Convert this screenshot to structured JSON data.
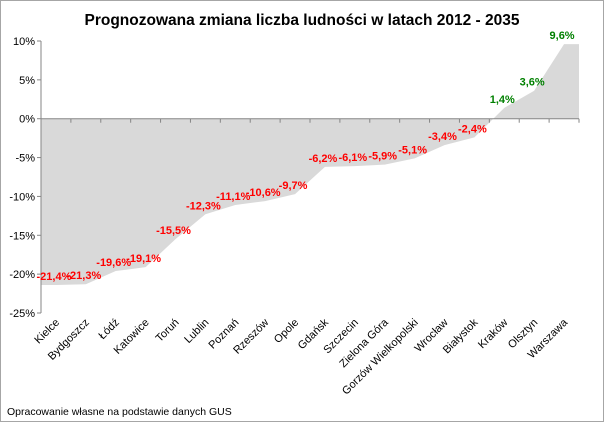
{
  "chart_data": {
    "type": "area",
    "title": "Prognozowana zmiana liczba ludności w latach 2012 - 2035",
    "footnote": "Opracowanie własne na podstawie danych GUS",
    "categories": [
      "Kielce",
      "Bydgoszcz",
      "Łódź",
      "Katowice",
      "Toruń",
      "Lublin",
      "Poznań",
      "Rzeszów",
      "Opole",
      "Gdańsk",
      "Szczecin",
      "Zielona Góra",
      "Gorzów Wielkopolski",
      "Wrocław",
      "Białystok",
      "Kraków",
      "Olsztyn",
      "Warszawa"
    ],
    "values": [
      -21.4,
      -21.3,
      -19.6,
      -19.1,
      -15.5,
      -12.3,
      -11.1,
      -10.6,
      -9.7,
      -6.2,
      -6.1,
      -5.9,
      -5.1,
      -3.4,
      -2.4,
      1.4,
      3.6,
      9.6
    ],
    "data_labels": [
      "-21,4%",
      "-21,3%",
      "-19,6%",
      "-19,1%",
      "-15,5%",
      "-12,3%",
      "-11,1%",
      "-10,6%",
      "-9,7%",
      "-6,2%",
      "-6,1%",
      "-5,9%",
      "-5,1%",
      "-3,4%",
      "-2,4%",
      "1,4%",
      "3,6%",
      "9,6%"
    ],
    "ylim": [
      -25,
      10
    ],
    "yticks": [
      10,
      5,
      0,
      -5,
      -10,
      -15,
      -20,
      -25
    ],
    "ytick_labels": [
      "10%",
      "5%",
      "0%",
      "-5%",
      "-10%",
      "-15%",
      "-20%",
      "-25%"
    ],
    "xlabel": "",
    "ylabel": "",
    "grid": false,
    "legend": "none",
    "colors": {
      "area": "#d9d9d9",
      "negative_label": "#ff0000",
      "positive_label": "#008000",
      "axis": "#868686",
      "border": "#a6a6a6"
    }
  }
}
